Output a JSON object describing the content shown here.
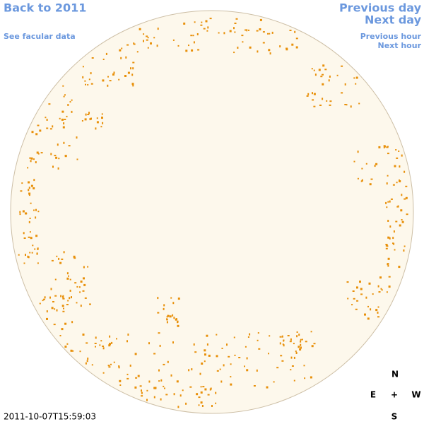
{
  "header": {
    "back_link": "Back to 2011",
    "facular_link": "See facular data",
    "previous_day": "Previous day",
    "next_day": "Next day",
    "previous_hour": "Previous hour",
    "next_hour": "Next hour"
  },
  "timestamp": "2011-10-07T15:59:03",
  "compass": {
    "north": "N",
    "east": "E",
    "center": "+",
    "west": "W",
    "south": "S"
  }
}
